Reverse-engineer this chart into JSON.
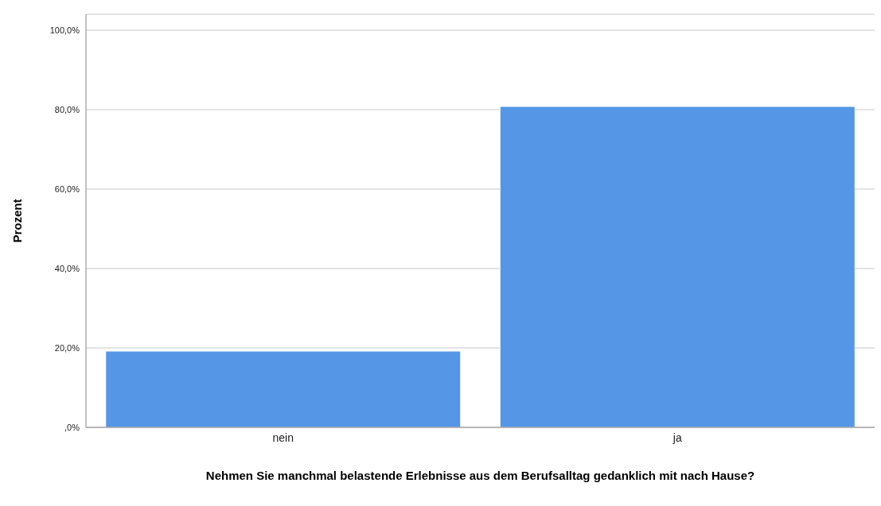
{
  "chart_data": {
    "type": "bar",
    "xlabel": "Nehmen Sie manchmal belastende Erlebnisse aus dem Berufsalltag gedanklich mit nach Hause?",
    "ylabel": "Prozent",
    "categories": [
      "nein",
      "ja"
    ],
    "values": [
      19.2,
      80.8
    ],
    "color": "#5596e6",
    "ylim": [
      0,
      104
    ],
    "yticks": [
      {
        "value": 0,
        "label": ",0%"
      },
      {
        "value": 20,
        "label": "20,0%"
      },
      {
        "value": 40,
        "label": "40,0%"
      },
      {
        "value": 60,
        "label": "60,0%"
      },
      {
        "value": 80,
        "label": "80,0%"
      },
      {
        "value": 100,
        "label": "100,0%"
      }
    ],
    "grid": "y"
  }
}
